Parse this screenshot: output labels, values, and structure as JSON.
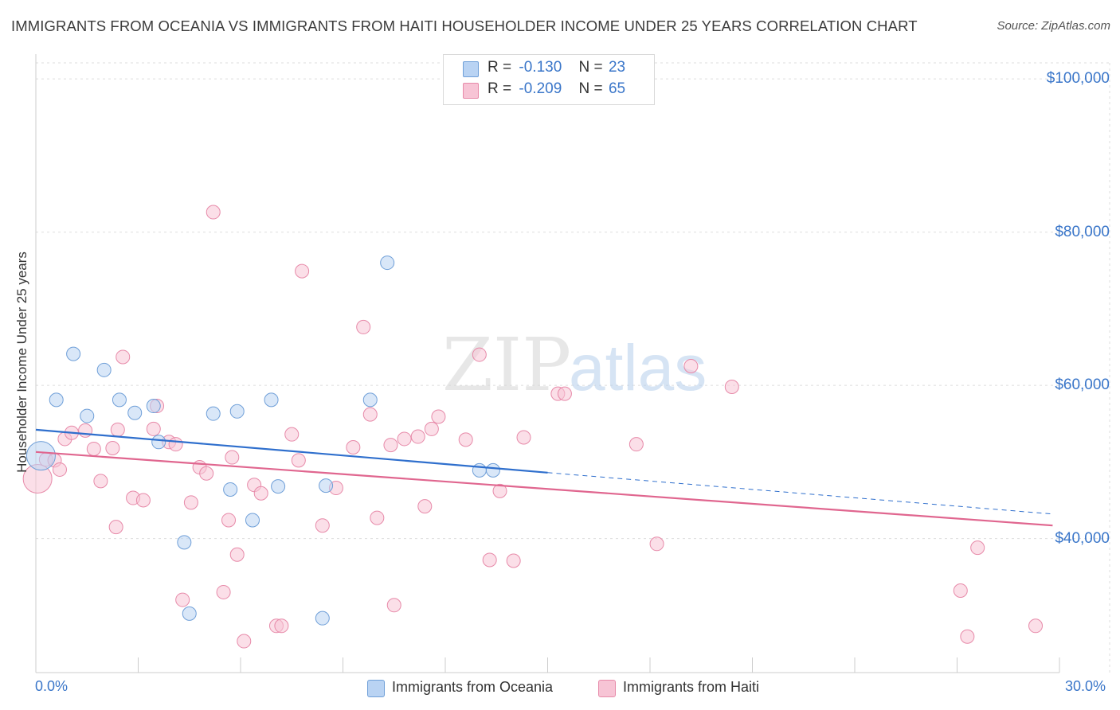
{
  "header": {
    "title": "IMMIGRANTS FROM OCEANIA VS IMMIGRANTS FROM HAITI HOUSEHOLDER INCOME UNDER 25 YEARS CORRELATION CHART",
    "source": "Source: ZipAtlas.com"
  },
  "legend": {
    "oceania": {
      "r_label": "R =",
      "r_value": "-0.130",
      "n_label": "N =",
      "n_value": "23"
    },
    "haiti": {
      "r_label": "R =",
      "r_value": "-0.209",
      "n_label": "N =",
      "n_value": "65"
    }
  },
  "bottom_legend": {
    "oceania": "Immigrants from Oceania",
    "haiti": "Immigrants from Haiti"
  },
  "watermark": {
    "zip": "ZIP",
    "atlas": "atlas"
  },
  "colors": {
    "oceania_fill": "#b9d3f3",
    "oceania_stroke": "#6f9fd8",
    "oceania_line": "#2f6fcd",
    "haiti_fill": "#f7c4d5",
    "haiti_stroke": "#e78aa9",
    "haiti_line": "#e0668f",
    "tick_text": "#3a76c9",
    "grid": "#dddddd"
  },
  "chart_data": {
    "type": "scatter",
    "title": "IMMIGRANTS FROM OCEANIA VS IMMIGRANTS FROM HAITI HOUSEHOLDER INCOME UNDER 25 YEARS CORRELATION CHART",
    "xlabel": "",
    "ylabel": "Householder Income Under 25 years",
    "xlim": [
      0,
      30
    ],
    "ylim": [
      22500,
      102500
    ],
    "x_tick_labels": {
      "0": "0.0%",
      "30": "30.0%"
    },
    "y_ticks": [
      {
        "value": 40000,
        "label": "$40,000"
      },
      {
        "value": 60000,
        "label": "$60,000"
      },
      {
        "value": 80000,
        "label": "$80,000"
      },
      {
        "value": 100000,
        "label": "$100,000"
      }
    ],
    "series": [
      {
        "name": "Immigrants from Oceania",
        "key": "oceania",
        "points": [
          [
            0.15,
            50800
          ],
          [
            0.6,
            58100
          ],
          [
            1.1,
            64100
          ],
          [
            1.5,
            56000
          ],
          [
            2.0,
            62000
          ],
          [
            2.45,
            58100
          ],
          [
            2.9,
            56400
          ],
          [
            3.45,
            57300
          ],
          [
            3.6,
            52600
          ],
          [
            4.35,
            39500
          ],
          [
            4.5,
            30200
          ],
          [
            5.2,
            56300
          ],
          [
            5.7,
            46400
          ],
          [
            5.9,
            56600
          ],
          [
            6.35,
            42400
          ],
          [
            6.9,
            58100
          ],
          [
            7.1,
            46800
          ],
          [
            8.4,
            29600
          ],
          [
            8.5,
            46900
          ],
          [
            9.8,
            58100
          ],
          [
            10.3,
            76000
          ],
          [
            13.0,
            48900
          ],
          [
            13.4,
            48900
          ]
        ],
        "trend": {
          "x_start": 0,
          "y_start": 54200,
          "x_solid_end": 15,
          "y_solid_end": 48600,
          "x_end": 29.8,
          "y_end": 43200
        }
      },
      {
        "name": "Immigrants from Haiti",
        "key": "haiti",
        "points": [
          [
            0.05,
            47800
          ],
          [
            0.3,
            50300
          ],
          [
            0.55,
            50200
          ],
          [
            0.7,
            49000
          ],
          [
            0.85,
            53000
          ],
          [
            1.05,
            53800
          ],
          [
            1.45,
            54100
          ],
          [
            1.7,
            51700
          ],
          [
            1.9,
            47500
          ],
          [
            2.25,
            51800
          ],
          [
            2.35,
            41500
          ],
          [
            2.4,
            54200
          ],
          [
            2.55,
            63700
          ],
          [
            2.85,
            45300
          ],
          [
            3.15,
            45000
          ],
          [
            3.45,
            54300
          ],
          [
            3.55,
            57300
          ],
          [
            3.9,
            52600
          ],
          [
            4.1,
            52300
          ],
          [
            4.3,
            32000
          ],
          [
            4.55,
            44700
          ],
          [
            4.8,
            49300
          ],
          [
            5.0,
            48500
          ],
          [
            5.2,
            82600
          ],
          [
            5.5,
            33000
          ],
          [
            5.65,
            42400
          ],
          [
            5.75,
            50600
          ],
          [
            5.9,
            37900
          ],
          [
            6.1,
            26600
          ],
          [
            6.4,
            47000
          ],
          [
            6.6,
            45900
          ],
          [
            7.05,
            28600
          ],
          [
            7.2,
            28600
          ],
          [
            7.5,
            53600
          ],
          [
            7.7,
            50200
          ],
          [
            7.8,
            74900
          ],
          [
            8.4,
            41700
          ],
          [
            8.8,
            46600
          ],
          [
            9.3,
            51900
          ],
          [
            9.6,
            67600
          ],
          [
            9.8,
            56200
          ],
          [
            10.0,
            42700
          ],
          [
            10.4,
            52200
          ],
          [
            10.5,
            31300
          ],
          [
            10.8,
            53000
          ],
          [
            11.2,
            53300
          ],
          [
            11.4,
            44200
          ],
          [
            11.6,
            54300
          ],
          [
            11.8,
            55900
          ],
          [
            12.6,
            52900
          ],
          [
            13.0,
            64000
          ],
          [
            13.3,
            37200
          ],
          [
            13.6,
            46200
          ],
          [
            14.0,
            37100
          ],
          [
            14.3,
            53200
          ],
          [
            15.3,
            58900
          ],
          [
            15.5,
            58900
          ],
          [
            17.6,
            52300
          ],
          [
            18.2,
            39300
          ],
          [
            19.2,
            62500
          ],
          [
            20.4,
            59800
          ],
          [
            27.1,
            33200
          ],
          [
            27.3,
            27200
          ],
          [
            27.6,
            38800
          ],
          [
            29.3,
            28600
          ]
        ],
        "trend": {
          "x_start": 0,
          "y_start": 51300,
          "x_end": 29.8,
          "y_end": 41700
        }
      }
    ]
  }
}
